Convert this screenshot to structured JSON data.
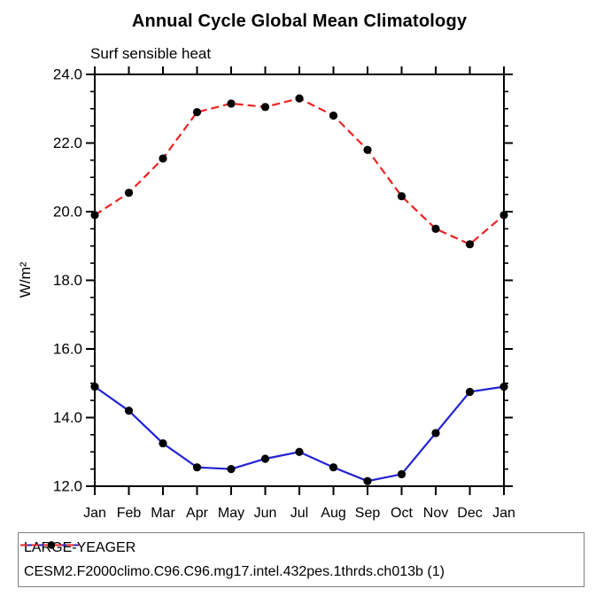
{
  "chart_data": {
    "type": "line",
    "title": "Annual Cycle Global Mean Climatology",
    "subtitle": "Surf sensible heat",
    "ylabel": "W/m²",
    "xlabel": "",
    "ylim": [
      12.0,
      24.0
    ],
    "ytick_step": 2.0,
    "yminor_step": 0.5,
    "ytick_label_format": "one-decimal",
    "grid": false,
    "legend_position": "bottom-box",
    "categories": [
      "Jan",
      "Feb",
      "Mar",
      "Apr",
      "May",
      "Jun",
      "Jul",
      "Aug",
      "Sep",
      "Oct",
      "Nov",
      "Dec",
      "Jan"
    ],
    "series": [
      {
        "name": "LARGE-YEAGER",
        "color": "#2323d3",
        "line_style": "solid",
        "marker": "filled-circle",
        "marker_color": "#000000",
        "values": [
          14.9,
          14.2,
          13.25,
          12.55,
          12.5,
          12.8,
          13.0,
          12.55,
          12.15,
          12.35,
          13.55,
          14.75,
          14.9
        ]
      },
      {
        "name": "CESM2.F2000climo.C96.C96.mg17.intel.432pes.1thrds.ch013b (1)",
        "color": "#ee2222",
        "line_style": "dashed",
        "marker": "filled-circle",
        "marker_color": "#000000",
        "values": [
          19.9,
          20.55,
          21.55,
          22.9,
          23.15,
          23.05,
          23.3,
          22.8,
          21.8,
          20.45,
          19.5,
          19.05,
          19.9
        ]
      }
    ],
    "axis_color": "#000000",
    "legend_border_color": "#808080"
  }
}
